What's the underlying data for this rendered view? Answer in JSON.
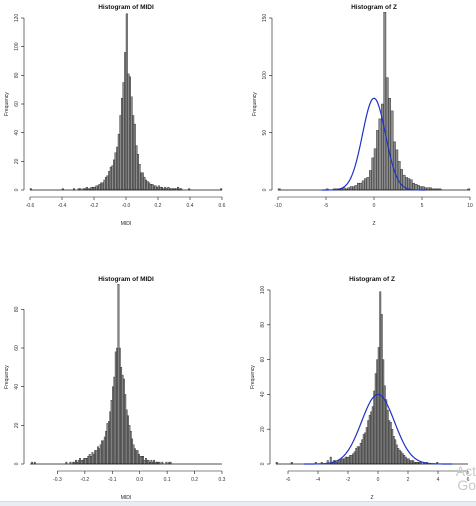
{
  "watermark": {
    "line1": "Act",
    "line2": "Go"
  },
  "chart_data": [
    {
      "type": "bar",
      "title": "Histogram of MIDI",
      "xlabel": "MIDI",
      "ylabel": "Frequency",
      "xlim": [
        -0.6,
        0.6
      ],
      "ylim": [
        0,
        120
      ],
      "xticks": [
        "-0.6",
        "-0.4",
        "-0.2",
        "-0.0",
        "0.2",
        "0.4",
        "0.6"
      ],
      "yticks": [
        "0",
        "20",
        "40",
        "60",
        "80",
        "100",
        "120"
      ],
      "bins": {
        "start": -0.6,
        "width": 0.01,
        "values": [
          1,
          0,
          0,
          0,
          0,
          0,
          0,
          0,
          0,
          0,
          0,
          0,
          0,
          0,
          0,
          0,
          0,
          0,
          0,
          0,
          1,
          0,
          0,
          0,
          0,
          0,
          0,
          1,
          0,
          0,
          1,
          1,
          0,
          1,
          1,
          2,
          1,
          1,
          2,
          2,
          2,
          3,
          3,
          4,
          5,
          5,
          7,
          9,
          10,
          13,
          16,
          17,
          21,
          26,
          30,
          39,
          52,
          64,
          75,
          96,
          123,
          81,
          79,
          65,
          52,
          46,
          31,
          25,
          18,
          12,
          12,
          9,
          7,
          6,
          5,
          4,
          4,
          3,
          3,
          2,
          3,
          2,
          2,
          1,
          2,
          1,
          2,
          1,
          1,
          1,
          1,
          1,
          2,
          1,
          1,
          0,
          0,
          0,
          0,
          1,
          0,
          0,
          0,
          0,
          0,
          0,
          0,
          0,
          0,
          0,
          0,
          0,
          0,
          0,
          0,
          0,
          0,
          0,
          0,
          1
        ]
      },
      "curve": null
    },
    {
      "type": "bar",
      "title": "Histogram of Z",
      "xlabel": "Z",
      "ylabel": "Frequency",
      "xlim": [
        -10,
        10
      ],
      "ylim": [
        0,
        150
      ],
      "xticks": [
        "-10",
        "-5",
        "0",
        "5",
        "10"
      ],
      "yticks": [
        "0",
        "50",
        "100",
        "150"
      ],
      "bins": {
        "start": -10,
        "width": 0.25,
        "values": [
          1,
          0,
          0,
          0,
          0,
          0,
          0,
          0,
          0,
          0,
          0,
          0,
          0,
          0,
          0,
          0,
          0,
          0,
          0,
          0,
          1,
          0,
          0,
          1,
          1,
          1,
          1,
          2,
          1,
          2,
          3,
          3,
          4,
          6,
          6,
          8,
          10,
          11,
          17,
          28,
          36,
          52,
          62,
          75,
          155,
          98,
          80,
          69,
          42,
          35,
          25,
          18,
          13,
          11,
          10,
          9,
          6,
          5,
          4,
          3,
          3,
          2,
          2,
          2,
          1,
          1,
          1,
          1,
          0,
          0,
          0,
          0,
          0,
          0,
          0,
          0,
          0,
          0,
          0,
          1
        ]
      },
      "curve": {
        "mean": 0,
        "sd": 1.2,
        "peak": 80
      }
    },
    {
      "type": "bar",
      "title": "Histogram of MIDI",
      "xlabel": "MIDI",
      "ylabel": "Frequency",
      "xlim": [
        -0.4,
        0.3
      ],
      "ylim": [
        0,
        90
      ],
      "xticks": [
        "-0.3",
        "-0.2",
        "-0.1",
        "0.0",
        "0.1",
        "0.2",
        "0.3"
      ],
      "yticks": [
        "0",
        "20",
        "40",
        "60",
        "80"
      ],
      "bins": {
        "start": -0.4,
        "width": 0.005,
        "values": [
          0,
          1,
          0,
          1,
          0,
          0,
          0,
          0,
          0,
          0,
          0,
          0,
          0,
          0,
          0,
          0,
          0,
          0,
          0,
          0,
          0,
          0,
          0,
          0,
          0,
          0,
          1,
          0,
          0,
          1,
          0,
          1,
          1,
          2,
          1,
          2,
          3,
          2,
          2,
          3,
          3,
          3,
          4,
          5,
          4,
          6,
          5,
          7,
          7,
          9,
          8,
          10,
          12,
          12,
          14,
          17,
          21,
          22,
          27,
          33,
          40,
          45,
          58,
          60,
          93,
          60,
          50,
          46,
          44,
          36,
          28,
          25,
          20,
          17,
          13,
          10,
          8,
          7,
          7,
          5,
          4,
          4,
          4,
          2,
          3,
          2,
          2,
          1,
          2,
          1,
          2,
          1,
          1,
          1,
          1,
          0,
          1,
          0,
          0,
          1,
          0,
          1,
          1,
          0,
          0,
          0,
          0,
          0,
          0,
          0,
          0,
          0,
          0,
          0,
          0,
          0,
          0,
          0,
          0,
          0,
          0,
          0,
          0,
          0,
          0,
          0,
          0,
          0,
          0,
          0,
          0,
          0,
          0,
          0,
          0,
          0,
          0,
          0,
          0,
          0
        ]
      },
      "curve": null
    },
    {
      "type": "bar",
      "title": "Histogram of Z",
      "xlabel": "Z",
      "ylabel": "Frequency",
      "xlim": [
        -6.8,
        6
      ],
      "ylim": [
        0,
        100
      ],
      "xticks": [
        "-6",
        "-4",
        "-2",
        "0",
        "2",
        "4",
        "6"
      ],
      "yticks": [
        "0",
        "20",
        "40",
        "60",
        "80",
        "100"
      ],
      "bins": {
        "start": -6.8,
        "width": 0.1,
        "values": [
          1,
          0,
          0,
          0,
          0,
          0,
          0,
          0,
          0,
          0,
          1,
          0,
          0,
          0,
          0,
          0,
          0,
          0,
          0,
          0,
          0,
          0,
          0,
          0,
          0,
          0,
          1,
          0,
          0,
          0,
          1,
          0,
          0,
          0,
          2,
          0,
          4,
          1,
          2,
          2,
          1,
          2,
          2,
          3,
          3,
          3,
          4,
          4,
          4,
          5,
          5,
          6,
          7,
          9,
          10,
          10,
          12,
          14,
          17,
          18,
          21,
          25,
          28,
          30,
          33,
          42,
          52,
          60,
          67,
          99,
          86,
          60,
          45,
          37,
          31,
          25,
          24,
          20,
          16,
          14,
          11,
          9,
          8,
          7,
          6,
          5,
          4,
          3,
          3,
          2,
          2,
          2,
          1,
          1,
          1,
          1,
          1,
          0,
          1,
          0,
          1,
          0,
          0,
          0,
          0,
          0,
          0,
          1,
          0,
          0,
          0,
          0,
          0,
          0,
          0,
          0,
          0,
          0,
          0,
          0,
          0,
          0,
          0,
          0,
          0,
          0,
          0,
          0,
          0,
          0
        ]
      },
      "curve": {
        "mean": 0,
        "sd": 1.1,
        "peak": 40
      }
    }
  ]
}
